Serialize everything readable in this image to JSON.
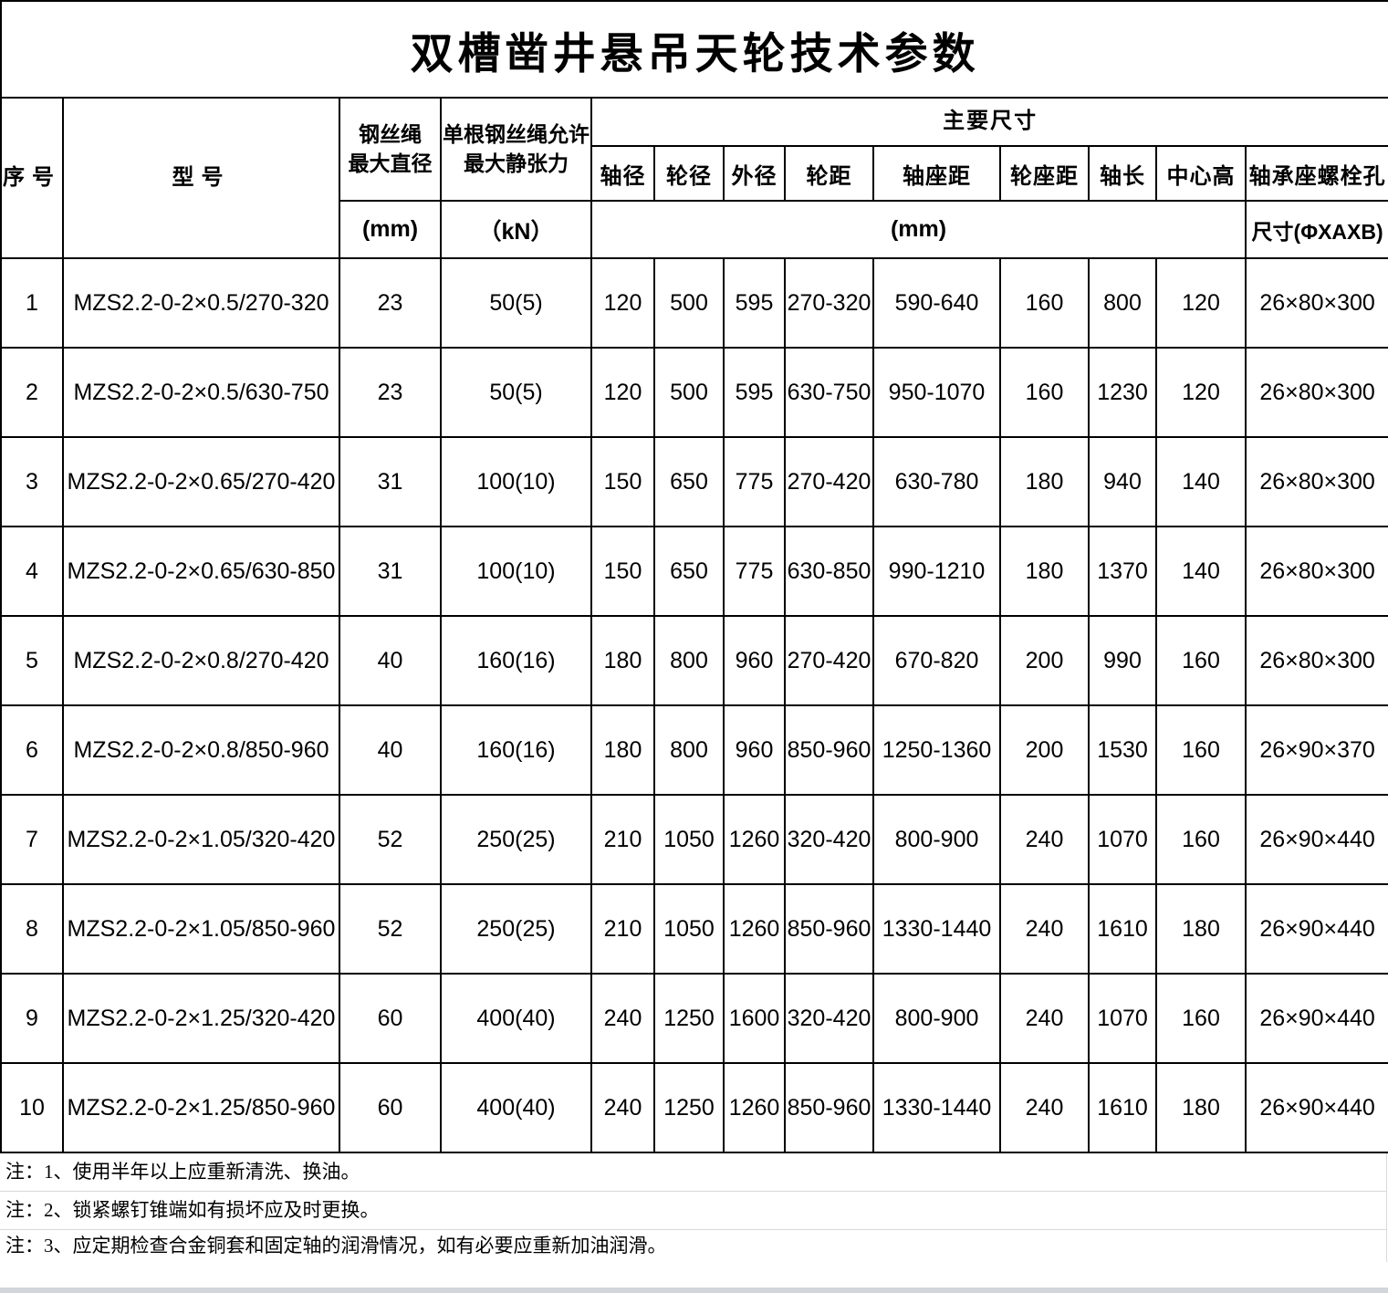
{
  "title": "双槽凿井悬吊天轮技术参数",
  "header": {
    "col_no": "序号",
    "col_model": "型号",
    "col_rope_dia": "钢丝绳\n最大直径",
    "col_tension": "单根钢丝绳允许\n最大静张力",
    "main_dims": "主要尺寸",
    "dims": [
      "轴径",
      "轮径",
      "外径",
      "轮距",
      "轴座距",
      "轮座距",
      "轴长",
      "中心高",
      "轴承座螺栓孔"
    ],
    "unit_rope_dia": "(mm)",
    "unit_tension": "（kN）",
    "unit_dims": "(mm)",
    "unit_bolt": "尺寸(ΦXAXB)"
  },
  "table": {
    "rows": [
      [
        "1",
        "MZS2.2-0-2×0.5/270-320",
        "23",
        "50(5)",
        "120",
        "500",
        "595",
        "270-320",
        "590-640",
        "160",
        "800",
        "120",
        "26×80×300"
      ],
      [
        "2",
        "MZS2.2-0-2×0.5/630-750",
        "23",
        "50(5)",
        "120",
        "500",
        "595",
        "630-750",
        "950-1070",
        "160",
        "1230",
        "120",
        "26×80×300"
      ],
      [
        "3",
        "MZS2.2-0-2×0.65/270-420",
        "31",
        "100(10)",
        "150",
        "650",
        "775",
        "270-420",
        "630-780",
        "180",
        "940",
        "140",
        "26×80×300"
      ],
      [
        "4",
        "MZS2.2-0-2×0.65/630-850",
        "31",
        "100(10)",
        "150",
        "650",
        "775",
        "630-850",
        "990-1210",
        "180",
        "1370",
        "140",
        "26×80×300"
      ],
      [
        "5",
        "MZS2.2-0-2×0.8/270-420",
        "40",
        "160(16)",
        "180",
        "800",
        "960",
        "270-420",
        "670-820",
        "200",
        "990",
        "160",
        "26×80×300"
      ],
      [
        "6",
        "MZS2.2-0-2×0.8/850-960",
        "40",
        "160(16)",
        "180",
        "800",
        "960",
        "850-960",
        "1250-1360",
        "200",
        "1530",
        "160",
        "26×90×370"
      ],
      [
        "7",
        "MZS2.2-0-2×1.05/320-420",
        "52",
        "250(25)",
        "210",
        "1050",
        "1260",
        "320-420",
        "800-900",
        "240",
        "1070",
        "160",
        "26×90×440"
      ],
      [
        "8",
        "MZS2.2-0-2×1.05/850-960",
        "52",
        "250(25)",
        "210",
        "1050",
        "1260",
        "850-960",
        "1330-1440",
        "240",
        "1610",
        "180",
        "26×90×440"
      ],
      [
        "9",
        "MZS2.2-0-2×1.25/320-420",
        "60",
        "400(40)",
        "240",
        "1250",
        "1600",
        "320-420",
        "800-900",
        "240",
        "1070",
        "160",
        "26×90×440"
      ],
      [
        "10",
        "MZS2.2-0-2×1.25/850-960",
        "60",
        "400(40)",
        "240",
        "1250",
        "1260",
        "850-960",
        "1330-1440",
        "240",
        "1610",
        "180",
        "26×90×440"
      ]
    ]
  },
  "notes": [
    "注：1、使用半年以上应重新清洗、换油。",
    "注：2、锁紧螺钉锥端如有损坏应及时更换。",
    "注：3、应定期检查合金铜套和固定轴的润滑情况，如有必要应重新加油润滑。"
  ]
}
